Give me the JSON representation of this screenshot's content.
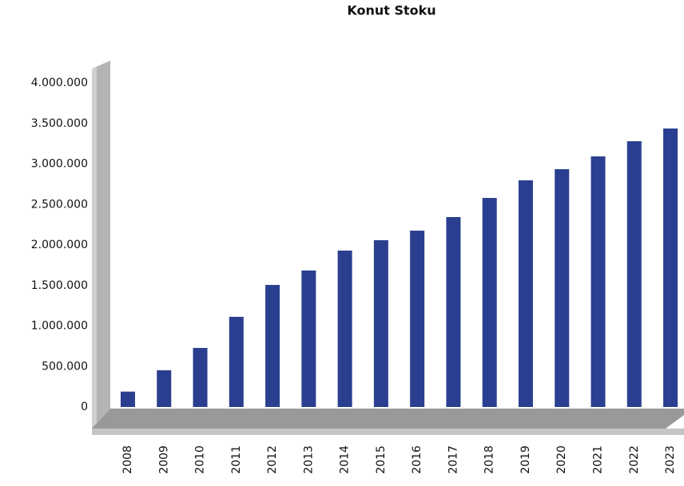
{
  "chart_data": {
    "type": "bar",
    "title": "Konut Stoku",
    "categories": [
      "2008",
      "2009",
      "2010",
      "2011",
      "2012",
      "2013",
      "2014",
      "2015",
      "2016",
      "2017",
      "2018",
      "2019",
      "2020",
      "2021",
      "2022",
      "2023"
    ],
    "values": [
      190000,
      453000,
      729000,
      1113000,
      1507000,
      1685000,
      1931000,
      2059000,
      2177000,
      2345000,
      2581000,
      2798000,
      2936000,
      3094000,
      3281000,
      3438000
    ],
    "color": "#2a3f8f",
    "ylim": [
      0,
      4000000
    ],
    "yticks": [
      0,
      {
        "value": 500000,
        "label": "500.000"
      },
      {
        "value": 1000000,
        "label": "1.000.000"
      },
      {
        "value": 1500000,
        "label": "1.500.000"
      },
      {
        "value": 2000000,
        "label": "2.000.000"
      },
      {
        "value": 2500000,
        "label": "2.500.000"
      },
      {
        "value": 3000000,
        "label": "3.000.000"
      },
      {
        "value": 3500000,
        "label": "3.500.000"
      },
      {
        "value": 4000000,
        "label": "4.000.000"
      }
    ],
    "grid": false
  }
}
